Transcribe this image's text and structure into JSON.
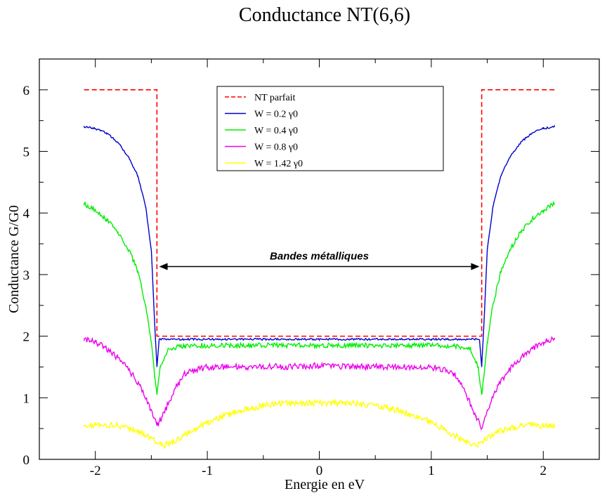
{
  "chart_data": {
    "type": "line",
    "title": "Conductance NT(6,6)",
    "xlabel": "Energie en eV",
    "ylabel": "Conductance G/G0",
    "xlim": [
      -2.5,
      2.5
    ],
    "ylim": [
      0,
      6.5
    ],
    "xticks": [
      -2,
      -1,
      0,
      1,
      2
    ],
    "xtick_labels": [
      "-2",
      "-1",
      "0",
      "1",
      "2"
    ],
    "yticks": [
      0,
      1,
      2,
      3,
      4,
      5,
      6
    ],
    "ytick_labels": [
      "0",
      "1",
      "2",
      "3",
      "4",
      "5",
      "6"
    ],
    "grid": false,
    "legend_position": "top-center",
    "annotation": {
      "text": "Bandes métalliques",
      "x_start": -1.43,
      "x_end": 1.43,
      "y": 3.13
    },
    "series": [
      {
        "name": "NT parfait",
        "style": "dashed",
        "color": "#ff0000",
        "x": [
          -2.1,
          -1.45,
          -1.45,
          1.45,
          1.45,
          2.1
        ],
        "y": [
          6,
          6,
          2,
          2,
          6,
          6
        ]
      },
      {
        "name": "W = 0.2 γ0",
        "style": "solid",
        "color": "#0000cc",
        "x": [
          -2.1,
          -2.0,
          -1.9,
          -1.8,
          -1.7,
          -1.62,
          -1.55,
          -1.5,
          -1.47,
          -1.45,
          -1.43,
          -1.35,
          -1.0,
          0,
          1.0,
          1.35,
          1.43,
          1.45,
          1.47,
          1.5,
          1.55,
          1.62,
          1.7,
          1.8,
          1.9,
          2.0,
          2.1
        ],
        "y": [
          5.4,
          5.37,
          5.3,
          5.15,
          4.9,
          4.6,
          4.1,
          3.4,
          2.2,
          1.5,
          1.95,
          1.95,
          1.95,
          1.95,
          1.95,
          1.95,
          1.95,
          1.5,
          2.2,
          3.4,
          4.1,
          4.6,
          4.9,
          5.15,
          5.3,
          5.37,
          5.4
        ]
      },
      {
        "name": "W = 0.4 γ0",
        "style": "solid",
        "color": "#00ee00",
        "x": [
          -2.1,
          -2.0,
          -1.9,
          -1.8,
          -1.7,
          -1.62,
          -1.55,
          -1.5,
          -1.47,
          -1.45,
          -1.42,
          -1.35,
          -1.2,
          -1.0,
          0,
          1.0,
          1.2,
          1.35,
          1.42,
          1.45,
          1.47,
          1.5,
          1.55,
          1.62,
          1.7,
          1.8,
          1.9,
          2.0,
          2.1
        ],
        "y": [
          4.15,
          4.05,
          3.9,
          3.7,
          3.4,
          3.05,
          2.5,
          1.9,
          1.35,
          1.05,
          1.5,
          1.8,
          1.84,
          1.85,
          1.85,
          1.85,
          1.84,
          1.8,
          1.5,
          1.05,
          1.35,
          1.9,
          2.5,
          3.05,
          3.4,
          3.7,
          3.9,
          4.05,
          4.15
        ]
      },
      {
        "name": "W = 0.8 γ0",
        "style": "solid",
        "color": "#ee00ee",
        "x": [
          -2.1,
          -2.0,
          -1.9,
          -1.8,
          -1.7,
          -1.6,
          -1.5,
          -1.45,
          -1.4,
          -1.3,
          -1.2,
          -1.0,
          -0.5,
          0,
          0.5,
          1.0,
          1.2,
          1.3,
          1.4,
          1.45,
          1.5,
          1.6,
          1.7,
          1.8,
          1.9,
          2.0,
          2.1
        ],
        "y": [
          1.95,
          1.9,
          1.8,
          1.65,
          1.45,
          1.2,
          0.8,
          0.55,
          0.7,
          1.1,
          1.4,
          1.5,
          1.5,
          1.52,
          1.5,
          1.5,
          1.4,
          1.1,
          0.7,
          0.5,
          0.8,
          1.2,
          1.45,
          1.65,
          1.8,
          1.9,
          1.95
        ]
      },
      {
        "name": "W = 1.42 γ0",
        "style": "solid",
        "color": "#ffff00",
        "x": [
          -2.1,
          -2.0,
          -1.8,
          -1.6,
          -1.5,
          -1.4,
          -1.3,
          -1.2,
          -1.0,
          -0.7,
          -0.4,
          0,
          0.4,
          0.7,
          1.0,
          1.2,
          1.3,
          1.4,
          1.5,
          1.6,
          1.8,
          2.0,
          2.1
        ],
        "y": [
          0.55,
          0.55,
          0.55,
          0.45,
          0.35,
          0.22,
          0.28,
          0.4,
          0.6,
          0.8,
          0.9,
          0.92,
          0.9,
          0.8,
          0.6,
          0.4,
          0.28,
          0.22,
          0.35,
          0.45,
          0.55,
          0.55,
          0.55
        ]
      }
    ]
  }
}
